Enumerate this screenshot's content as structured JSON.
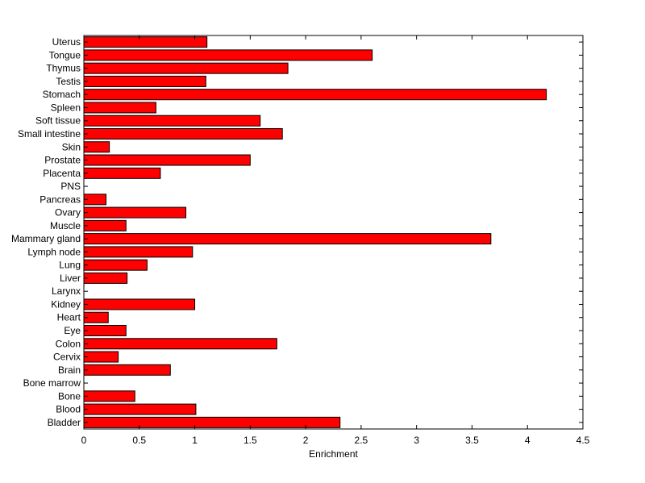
{
  "chart_data": {
    "type": "bar",
    "orientation": "horizontal",
    "title": "",
    "xlabel": "Enrichment",
    "ylabel": "",
    "xlim": [
      0,
      4.5
    ],
    "x_ticks": [
      0,
      0.5,
      1,
      1.5,
      2,
      2.5,
      3,
      3.5,
      4,
      4.5
    ],
    "x_tick_labels": [
      "0",
      "0.5",
      "1",
      "1.5",
      "2",
      "2.5",
      "3",
      "3.5",
      "4",
      "4.5"
    ],
    "grid": false,
    "legend": "none",
    "bar_color": "#ff0000",
    "bar_edge_color": "#000000",
    "categories": [
      "Bladder",
      "Blood",
      "Bone",
      "Bone marrow",
      "Brain",
      "Cervix",
      "Colon",
      "Eye",
      "Heart",
      "Kidney",
      "Larynx",
      "Liver",
      "Lung",
      "Lymph node",
      "Mammary gland",
      "Muscle",
      "Ovary",
      "Pancreas",
      "PNS",
      "Placenta",
      "Prostate",
      "Skin",
      "Small intestine",
      "Soft tissue",
      "Spleen",
      "Stomach",
      "Testis",
      "Thymus",
      "Tongue",
      "Uterus"
    ],
    "values": [
      2.31,
      1.01,
      0.46,
      0,
      0.78,
      0.31,
      1.74,
      0.38,
      0.22,
      1.0,
      0,
      0.39,
      0.57,
      0.98,
      3.67,
      0.38,
      0.92,
      0.2,
      0,
      0.69,
      1.5,
      0.23,
      1.79,
      1.59,
      0.65,
      4.17,
      1.1,
      1.84,
      2.6,
      1.11
    ]
  }
}
